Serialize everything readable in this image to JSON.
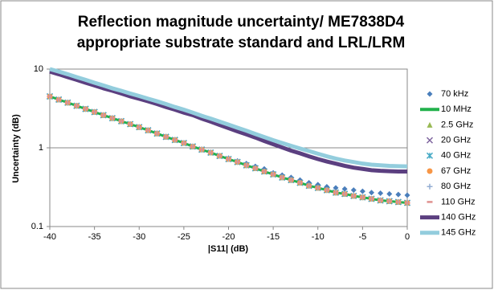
{
  "chart_data": {
    "type": "line",
    "title": [
      "Reflection magnitude uncertainty/ ME7838D4",
      "appropriate substrate standard and LRL/LRM"
    ],
    "x_label": "|S11| (dB)",
    "y_label": "Uncertainty (dB)",
    "x": [
      -40,
      -39,
      -38,
      -37,
      -36,
      -35,
      -34,
      -33,
      -32,
      -31,
      -30,
      -29,
      -28,
      -27,
      -26,
      -25,
      -24,
      -23,
      -22,
      -21,
      -20,
      -19,
      -18,
      -17,
      -16,
      -15,
      -14,
      -13,
      -12,
      -11,
      -10,
      -9,
      -8,
      -7,
      -6,
      -5,
      -4,
      -3,
      -2,
      -1,
      0
    ],
    "xlim": [
      -40,
      0
    ],
    "xticks": [
      -40,
      -35,
      -30,
      -25,
      -20,
      -15,
      -10,
      -5,
      0
    ],
    "ylim": [
      0.1,
      10
    ],
    "yticks": [
      0.1,
      1,
      10
    ],
    "log_y": true,
    "grid": true,
    "legend": "right",
    "series": [
      {
        "name": "70 kHz",
        "color": "#4a7ebb",
        "marker": "diamond",
        "values": [
          4.5,
          4.1,
          3.75,
          3.42,
          3.12,
          2.85,
          2.6,
          2.38,
          2.18,
          2.0,
          1.83,
          1.67,
          1.52,
          1.38,
          1.26,
          1.15,
          1.04,
          0.95,
          0.87,
          0.79,
          0.74,
          0.68,
          0.63,
          0.58,
          0.54,
          0.48,
          0.45,
          0.42,
          0.39,
          0.36,
          0.34,
          0.32,
          0.31,
          0.3,
          0.29,
          0.28,
          0.27,
          0.265,
          0.26,
          0.255,
          0.25
        ]
      },
      {
        "name": "10 MHz",
        "color": "#22b14c",
        "marker": "line",
        "values": [
          4.5,
          4.1,
          3.75,
          3.42,
          3.12,
          2.85,
          2.6,
          2.38,
          2.18,
          2.0,
          1.83,
          1.67,
          1.52,
          1.38,
          1.26,
          1.15,
          1.04,
          0.95,
          0.87,
          0.79,
          0.72,
          0.66,
          0.6,
          0.55,
          0.5,
          0.46,
          0.42,
          0.39,
          0.36,
          0.33,
          0.31,
          0.29,
          0.27,
          0.26,
          0.245,
          0.235,
          0.225,
          0.215,
          0.21,
          0.205,
          0.2
        ]
      },
      {
        "name": "2.5 GHz",
        "color": "#98b954",
        "marker": "triangle",
        "values": [
          4.5,
          4.1,
          3.75,
          3.42,
          3.12,
          2.85,
          2.6,
          2.38,
          2.18,
          2.0,
          1.83,
          1.67,
          1.52,
          1.38,
          1.26,
          1.15,
          1.04,
          0.95,
          0.87,
          0.79,
          0.72,
          0.66,
          0.6,
          0.55,
          0.5,
          0.46,
          0.42,
          0.39,
          0.36,
          0.33,
          0.31,
          0.29,
          0.27,
          0.26,
          0.245,
          0.235,
          0.225,
          0.215,
          0.21,
          0.205,
          0.2
        ]
      },
      {
        "name": "20 GHz",
        "color": "#7e649e",
        "marker": "cross",
        "values": [
          4.5,
          4.1,
          3.75,
          3.42,
          3.12,
          2.85,
          2.6,
          2.38,
          2.18,
          2.0,
          1.83,
          1.67,
          1.52,
          1.38,
          1.26,
          1.15,
          1.04,
          0.95,
          0.87,
          0.79,
          0.72,
          0.66,
          0.6,
          0.55,
          0.5,
          0.46,
          0.42,
          0.39,
          0.36,
          0.33,
          0.31,
          0.29,
          0.27,
          0.26,
          0.245,
          0.235,
          0.225,
          0.215,
          0.21,
          0.205,
          0.2
        ]
      },
      {
        "name": "40 GHz",
        "color": "#46aac5",
        "marker": "star",
        "values": [
          4.5,
          4.1,
          3.75,
          3.42,
          3.12,
          2.85,
          2.6,
          2.38,
          2.18,
          2.0,
          1.83,
          1.67,
          1.52,
          1.38,
          1.26,
          1.15,
          1.04,
          0.95,
          0.87,
          0.79,
          0.72,
          0.66,
          0.6,
          0.55,
          0.5,
          0.46,
          0.42,
          0.39,
          0.36,
          0.33,
          0.31,
          0.29,
          0.27,
          0.26,
          0.245,
          0.235,
          0.225,
          0.215,
          0.21,
          0.205,
          0.2
        ]
      },
      {
        "name": "67 GHz",
        "color": "#f79646",
        "marker": "circle",
        "values": [
          4.5,
          4.1,
          3.75,
          3.42,
          3.12,
          2.85,
          2.6,
          2.38,
          2.18,
          2.0,
          1.83,
          1.67,
          1.52,
          1.38,
          1.26,
          1.15,
          1.04,
          0.95,
          0.87,
          0.79,
          0.72,
          0.66,
          0.6,
          0.55,
          0.5,
          0.46,
          0.42,
          0.39,
          0.36,
          0.33,
          0.31,
          0.29,
          0.27,
          0.26,
          0.245,
          0.235,
          0.225,
          0.215,
          0.21,
          0.205,
          0.2
        ]
      },
      {
        "name": "80 GHz",
        "color": "#94aed3",
        "marker": "plus",
        "values": [
          4.5,
          4.1,
          3.75,
          3.42,
          3.12,
          2.85,
          2.6,
          2.38,
          2.18,
          2.0,
          1.83,
          1.67,
          1.52,
          1.38,
          1.26,
          1.15,
          1.04,
          0.95,
          0.87,
          0.79,
          0.72,
          0.66,
          0.6,
          0.55,
          0.5,
          0.46,
          0.42,
          0.39,
          0.36,
          0.33,
          0.31,
          0.29,
          0.27,
          0.26,
          0.245,
          0.235,
          0.225,
          0.215,
          0.21,
          0.205,
          0.2
        ]
      },
      {
        "name": "110 GHz",
        "color": "#e0918f",
        "marker": "dash",
        "values": [
          4.5,
          4.1,
          3.75,
          3.42,
          3.12,
          2.85,
          2.6,
          2.38,
          2.18,
          2.0,
          1.83,
          1.67,
          1.52,
          1.38,
          1.26,
          1.15,
          1.04,
          0.95,
          0.87,
          0.79,
          0.72,
          0.66,
          0.6,
          0.55,
          0.5,
          0.46,
          0.42,
          0.39,
          0.36,
          0.33,
          0.31,
          0.29,
          0.27,
          0.26,
          0.245,
          0.235,
          0.225,
          0.215,
          0.21,
          0.205,
          0.2
        ]
      },
      {
        "name": "140 GHz",
        "color": "#5b3f80",
        "marker": "thick-line",
        "values": [
          9.3,
          8.6,
          7.9,
          7.3,
          6.7,
          6.2,
          5.7,
          5.3,
          4.9,
          4.5,
          4.2,
          3.9,
          3.6,
          3.3,
          3.05,
          2.8,
          2.6,
          2.35,
          2.15,
          1.95,
          1.78,
          1.62,
          1.48,
          1.35,
          1.22,
          1.11,
          1.01,
          0.92,
          0.85,
          0.78,
          0.72,
          0.67,
          0.63,
          0.59,
          0.56,
          0.54,
          0.52,
          0.51,
          0.505,
          0.5,
          0.5
        ]
      },
      {
        "name": "145 GHz",
        "color": "#93cddd",
        "marker": "thick-line",
        "values": [
          10.0,
          9.3,
          8.6,
          7.9,
          7.3,
          6.7,
          6.2,
          5.7,
          5.3,
          4.9,
          4.55,
          4.2,
          3.9,
          3.6,
          3.3,
          3.05,
          2.8,
          2.55,
          2.35,
          2.15,
          1.97,
          1.8,
          1.65,
          1.5,
          1.37,
          1.25,
          1.15,
          1.06,
          0.98,
          0.91,
          0.84,
          0.78,
          0.73,
          0.69,
          0.66,
          0.63,
          0.61,
          0.6,
          0.59,
          0.585,
          0.58
        ]
      }
    ]
  }
}
